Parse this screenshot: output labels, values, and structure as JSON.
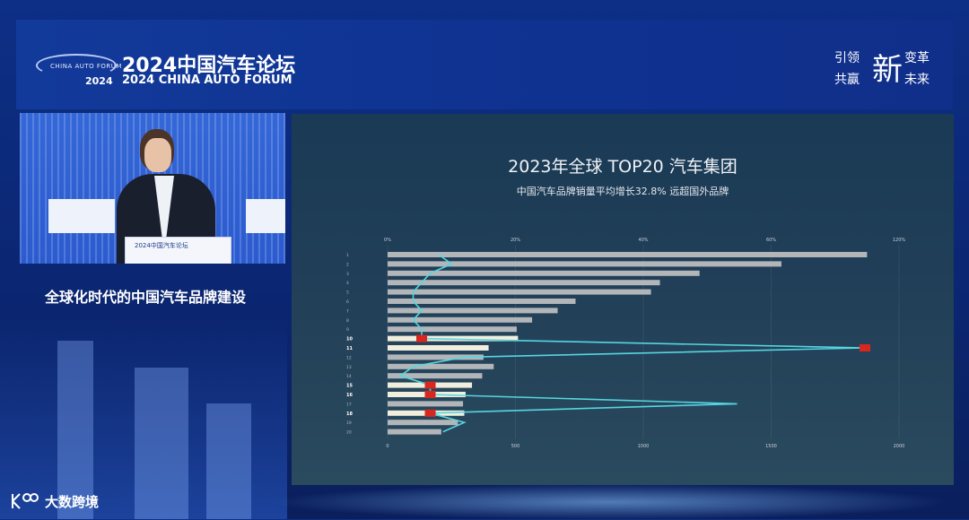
{
  "forum": {
    "logo_mini": "CHINA AUTO FORUM",
    "logo_year": "2024",
    "title_cn": "2024中国汽车论坛",
    "title_en": "2024 CHINA AUTO FORUM"
  },
  "slogan": {
    "l1": "引领",
    "big": "新",
    "r1": "变革",
    "l2": "共赢",
    "r2": "未来"
  },
  "video": {
    "podium_text": "2024中国汽车论坛"
  },
  "talk_title": "全球化时代的中国汽车品牌建设",
  "slide": {
    "title": "2023年全球 TOP20 汽车集团",
    "subtitle": "中国汽车品牌销量平均增长32.8% 远超国外品牌"
  },
  "watermark": {
    "text": "大数跨境"
  },
  "colors": {
    "bar_normal": "#b3b6b9",
    "bar_chinese": "#f2eedd",
    "growth_line": "#55d6df",
    "chinese_marker": "#d8271f"
  },
  "chart_data": {
    "type": "bar",
    "orientation": "horizontal",
    "title": "2023年全球 TOP20 汽车集团",
    "subtitle": "中国汽车品牌销量平均增长32.8% 远超国外品牌",
    "top_axis_ticks": [
      "0%",
      "20%",
      "40%",
      "60%",
      "120%"
    ],
    "bottom_axis_ticks": [
      "0",
      "500",
      "1000",
      "1500",
      "2000"
    ],
    "xlim": [
      0,
      2000
    ],
    "categories": [
      "1",
      "2",
      "3",
      "4",
      "5",
      "6",
      "7",
      "8",
      "9",
      "10",
      "11",
      "12",
      "13",
      "14",
      "15",
      "16",
      "17",
      "18",
      "19",
      "20"
    ],
    "chinese_brand_ranks": [
      10,
      11,
      15,
      16,
      18
    ],
    "series": [
      {
        "values": [
          1875,
          1540,
          1220,
          1065,
          1030,
          735,
          665,
          565,
          505,
          510,
          395,
          375,
          415,
          370,
          330,
          305,
          295,
          300,
          275,
          210
        ]
      },
      {
        "values": [
          12,
          15,
          10,
          8,
          6,
          6,
          8,
          6,
          8,
          8,
          112,
          18,
          6,
          3,
          10,
          10,
          82,
          10,
          18,
          13
        ]
      }
    ]
  }
}
